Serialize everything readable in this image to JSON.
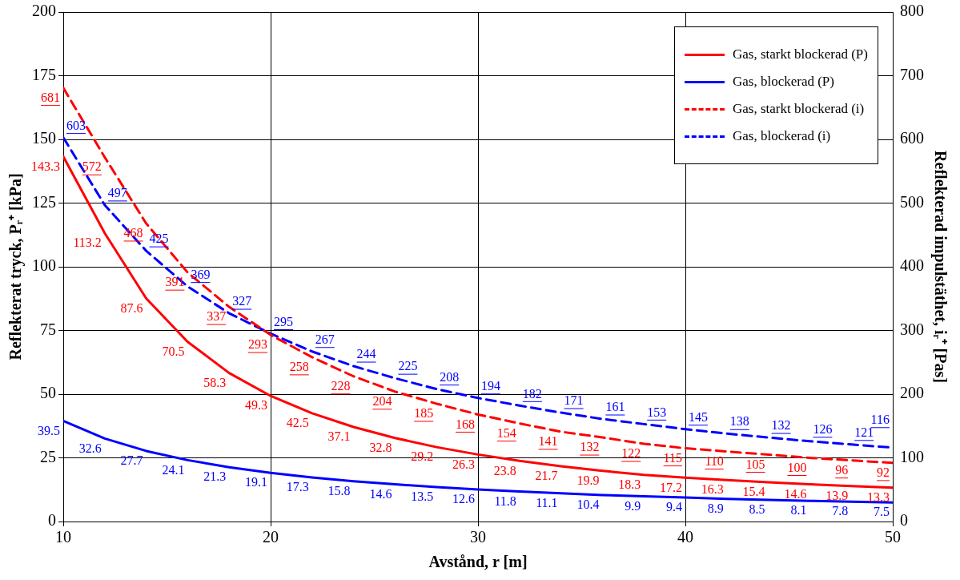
{
  "chart_data": {
    "type": "line",
    "xlabel": "Avstånd, r [m]",
    "ylabel": "Reflekterat tryck, Pᵣ⁺ [kPa]",
    "y2label": "Reflekterad impulstäthet, iᵣ⁺ [Pas]",
    "x": [
      10,
      12,
      14,
      16,
      18,
      20,
      22,
      24,
      26,
      28,
      30,
      32,
      34,
      36,
      38,
      40,
      42,
      44,
      46,
      48,
      50
    ],
    "xlim": [
      10,
      50
    ],
    "xticks": [
      10,
      20,
      30,
      40,
      50
    ],
    "ylim": [
      0,
      200
    ],
    "yticks": [
      0,
      25,
      50,
      75,
      100,
      125,
      150,
      175,
      200
    ],
    "y2lim": [
      0,
      800
    ],
    "y2ticks": [
      0,
      100,
      200,
      300,
      400,
      500,
      600,
      700,
      800
    ],
    "grid": true,
    "legend": "top right",
    "marker": "none",
    "data_labels": true,
    "series": [
      {
        "name": "Gas, starkt blockerad (P)",
        "color": "#ff0000",
        "line_style": "solid",
        "values": [
          143.3,
          113.2,
          87.6,
          70.5,
          58.3,
          49.3,
          42.5,
          37.1,
          32.8,
          29.2,
          26.3,
          23.8,
          21.7,
          19.9,
          18.3,
          17.2,
          16.3,
          15.4,
          14.6,
          13.9,
          13.3
        ]
      },
      {
        "name": "Gas, blockerad (P)",
        "color": "#0000ff",
        "line_style": "solid",
        "values": [
          39.5,
          32.6,
          27.7,
          24.1,
          21.3,
          19.1,
          17.3,
          15.8,
          14.6,
          13.5,
          12.6,
          11.8,
          11.1,
          10.4,
          9.9,
          9.4,
          8.9,
          8.5,
          8.1,
          7.8,
          7.5
        ]
      },
      {
        "name": "Gas, starkt blockerad (i)",
        "color": "#ff0000",
        "line_style": "dashed",
        "axis": "y2",
        "values": [
          681,
          572,
          468,
          391,
          337,
          293,
          258,
          228,
          204,
          185,
          168,
          154,
          141,
          132,
          122,
          115,
          110,
          105,
          100,
          96,
          92
        ]
      },
      {
        "name": "Gas, blockerad (i)",
        "color": "#0000ff",
        "line_style": "dashed",
        "axis": "y2",
        "values": [
          603,
          497,
          425,
          369,
          327,
          295,
          267,
          244,
          225,
          208,
          194,
          182,
          171,
          161,
          153,
          145,
          138,
          132,
          126,
          121,
          116
        ]
      }
    ]
  }
}
